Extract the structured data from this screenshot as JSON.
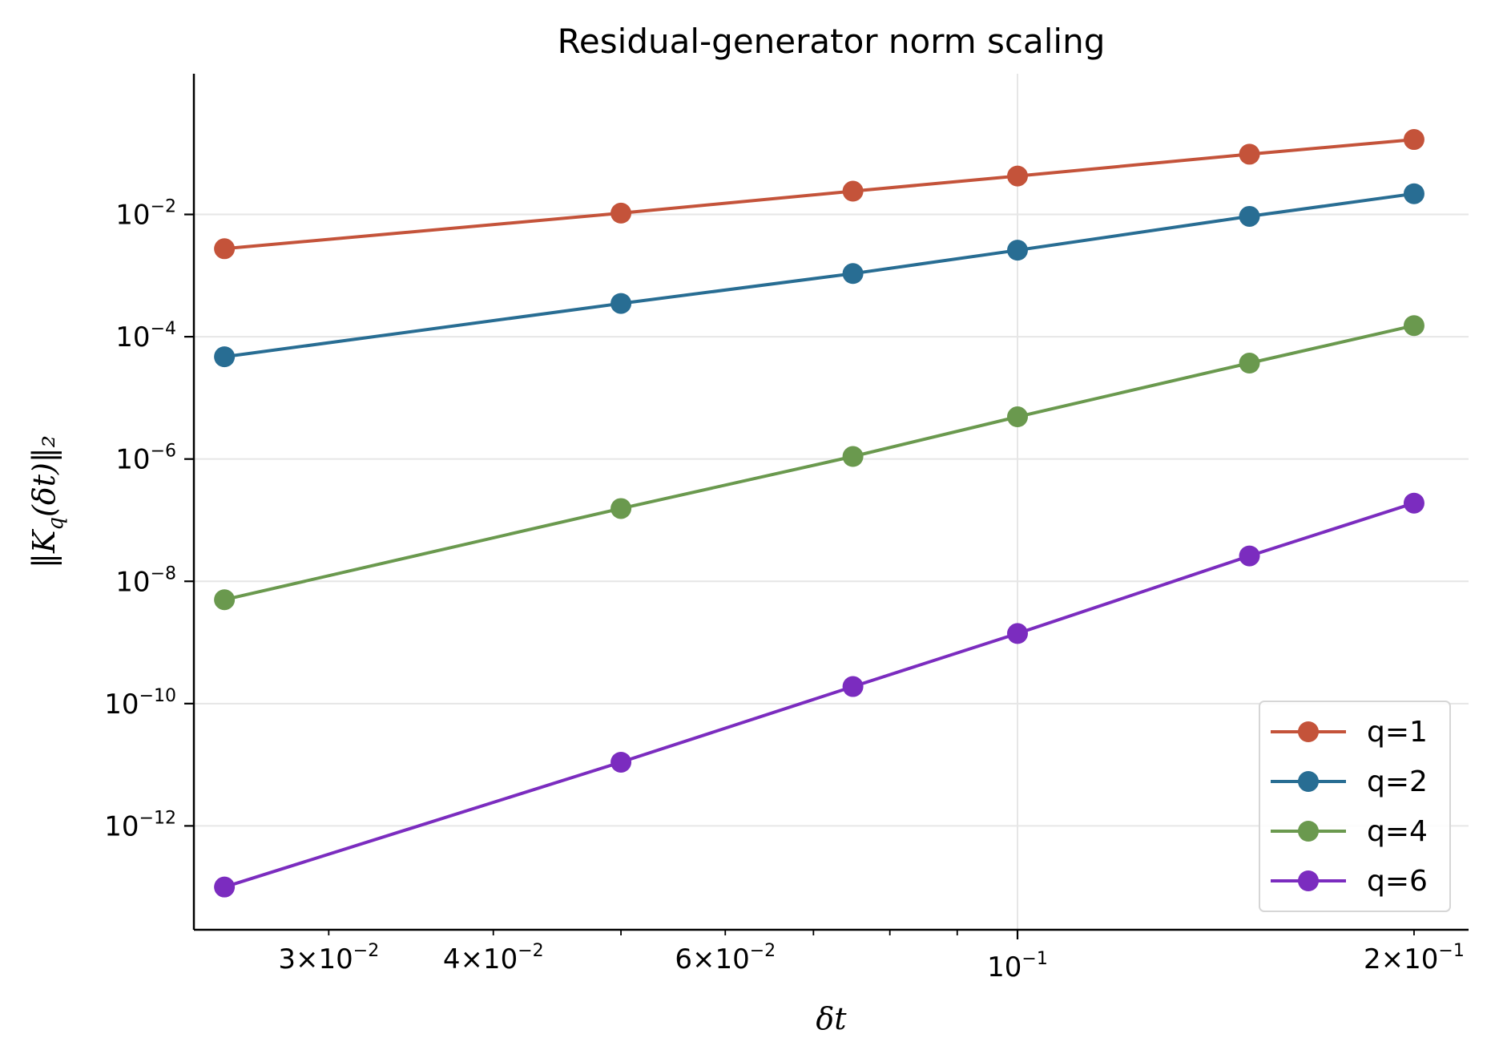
{
  "chart_data": {
    "type": "line",
    "title": "Residual-generator norm scaling",
    "xlabel": "δt",
    "ylabel": "‖K_q(δt)‖₂",
    "x_scale": "log",
    "y_scale": "log",
    "xlim": [
      0.0237,
      0.22
    ],
    "ylim": [
      2e-14,
      2.0
    ],
    "x": [
      0.025,
      0.05,
      0.075,
      0.1,
      0.15,
      0.2
    ],
    "x_ticks": [
      {
        "value": 0.03,
        "mantissa": "3",
        "exponent": "−2"
      },
      {
        "value": 0.04,
        "mantissa": "4",
        "exponent": "−2"
      },
      {
        "value": 0.06,
        "mantissa": "6",
        "exponent": "−2"
      },
      {
        "value": 0.1,
        "mantissa": "",
        "exponent": "−1"
      },
      {
        "value": 0.2,
        "mantissa": "2",
        "exponent": "−1"
      }
    ],
    "y_ticks": [
      {
        "value": 0.01,
        "exponent": "−2"
      },
      {
        "value": 0.0001,
        "exponent": "−4"
      },
      {
        "value": 1e-06,
        "exponent": "−6"
      },
      {
        "value": 1e-08,
        "exponent": "−8"
      },
      {
        "value": 1e-10,
        "exponent": "−10"
      },
      {
        "value": 1e-12,
        "exponent": "−12"
      }
    ],
    "grid": true,
    "legend_position": "bottom-right",
    "series": [
      {
        "name": "q=1",
        "color": "#c4533a",
        "values": [
          0.00275,
          0.0105,
          0.024,
          0.0425,
          0.0965,
          0.168
        ]
      },
      {
        "name": "q=2",
        "color": "#286d93",
        "values": [
          4.7e-05,
          0.00035,
          0.00108,
          0.0026,
          0.0093,
          0.0218
        ]
      },
      {
        "name": "q=4",
        "color": "#6a994e",
        "values": [
          5e-09,
          1.55e-07,
          1.1e-06,
          4.9e-06,
          3.7e-05,
          0.000152
        ]
      },
      {
        "name": "q=6",
        "color": "#7b2cbf",
        "values": [
          1e-13,
          1.1e-11,
          1.9e-10,
          1.4e-09,
          2.6e-08,
          1.9e-07
        ]
      }
    ]
  }
}
